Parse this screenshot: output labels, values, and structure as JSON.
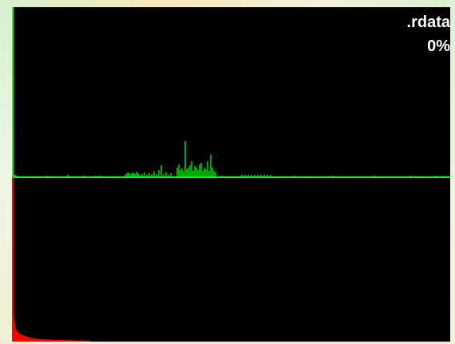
{
  "section": {
    "name": ".rdata",
    "percent": "0%"
  },
  "colors": {
    "background": "#000000",
    "entropy_line": "#00ff00",
    "entropy_axis": "#00ff00",
    "byte_histogram": "#ff0000",
    "label_text": "#ffffff"
  },
  "icons": []
}
